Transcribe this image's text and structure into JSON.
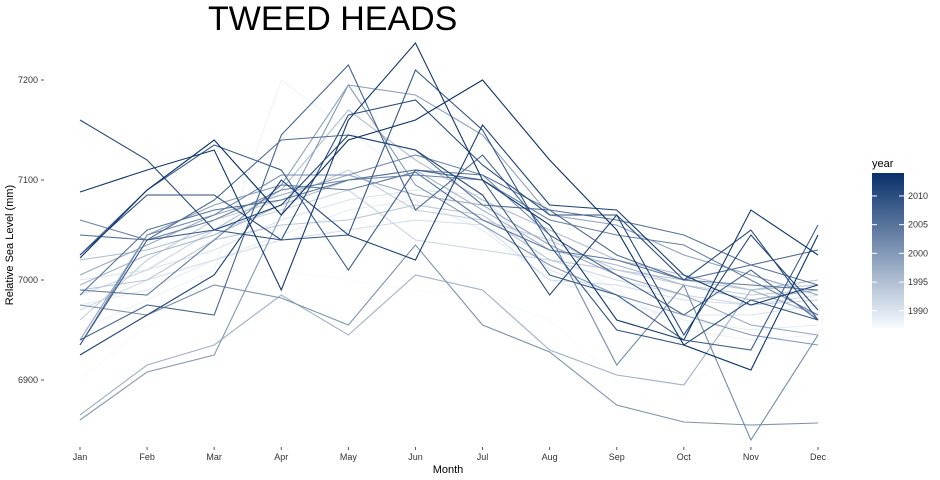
{
  "chart_data": {
    "type": "line",
    "title": "TWEED HEADS",
    "xlabel": "Month",
    "ylabel": "Relative Sea Level (mm)",
    "categories": [
      "Jan",
      "Feb",
      "Mar",
      "Apr",
      "May",
      "Jun",
      "Jul",
      "Aug",
      "Sep",
      "Oct",
      "Nov",
      "Dec"
    ],
    "ylim": [
      6840,
      7240
    ],
    "yticks": [
      6900,
      7000,
      7100,
      7200
    ],
    "ytick_labels": [
      "6900",
      "7000",
      "7100",
      "7200"
    ],
    "grid": false,
    "legend": {
      "title": "year",
      "position": "right",
      "type": "colorbar",
      "range": [
        1987,
        2014
      ],
      "breaks": [
        1990,
        1995,
        2000,
        2005,
        2010
      ],
      "labels": [
        "1990",
        "1995",
        "2000",
        "2005",
        "2010"
      ],
      "low_color": "#f7fbff",
      "high_color": "#08306b"
    },
    "series": [
      {
        "year": 1987,
        "values": [
          6900,
          6955,
          6985,
          7010,
          7000,
          6990,
          6985,
          6960,
          6900,
          6895,
          6935,
          6940
        ]
      },
      {
        "year": 1988,
        "values": [
          6950,
          6980,
          7010,
          7200,
          7150,
          7100,
          7060,
          7030,
          6990,
          6950,
          6940,
          6945
        ]
      },
      {
        "year": 1989,
        "values": [
          6975,
          6990,
          7020,
          7045,
          7070,
          7080,
          7050,
          7000,
          6980,
          6960,
          6950,
          6955
        ]
      },
      {
        "year": 1990,
        "values": [
          7000,
          7010,
          7030,
          7060,
          7080,
          7090,
          7085,
          7010,
          6985,
          6965,
          6965,
          6975
        ]
      },
      {
        "year": 1991,
        "values": [
          6970,
          7000,
          7020,
          7040,
          7050,
          7060,
          7055,
          7000,
          6995,
          6980,
          6975,
          6985
        ]
      },
      {
        "year": 1992,
        "values": [
          6985,
          7010,
          7050,
          7070,
          7090,
          7040,
          7030,
          7020,
          7000,
          6985,
          6975,
          6980
        ]
      },
      {
        "year": 1993,
        "values": [
          6960,
          7020,
          7060,
          7080,
          7110,
          7070,
          7060,
          7040,
          7010,
          6995,
          6985,
          6990
        ]
      },
      {
        "year": 1994,
        "values": [
          6990,
          7000,
          7040,
          7055,
          7060,
          7075,
          7065,
          7020,
          7010,
          7000,
          6990,
          6995
        ]
      },
      {
        "year": 1995,
        "values": [
          7020,
          7030,
          7050,
          7090,
          7170,
          7120,
          7080,
          7050,
          7020,
          7005,
          6990,
          7000
        ]
      },
      {
        "year": 1996,
        "values": [
          6995,
          7025,
          7045,
          7075,
          7100,
          7110,
          7070,
          7030,
          7015,
          6995,
          6980,
          6990
        ]
      },
      {
        "year": 1997,
        "values": [
          6865,
          6915,
          6935,
          6985,
          6945,
          7005,
          6990,
          6930,
          6905,
          6895,
          6990,
          6965
        ]
      },
      {
        "year": 1998,
        "values": [
          7005,
          7035,
          7065,
          7085,
          7105,
          7085,
          7075,
          7035,
          7005,
          6985,
          6955,
          6945
        ]
      },
      {
        "year": 1999,
        "values": [
          6940,
          7045,
          7075,
          7095,
          7195,
          7185,
          7145,
          7065,
          7055,
          7025,
          7005,
          6985
        ]
      },
      {
        "year": 2000,
        "values": [
          6860,
          6908,
          6925,
          7065,
          7195,
          7095,
          7055,
          7015,
          6985,
          6965,
          6945,
          6935
        ]
      },
      {
        "year": 2001,
        "values": [
          6975,
          6965,
          6995,
          6982,
          6955,
          7035,
          6955,
          6928,
          6875,
          6858,
          6855,
          6857
        ]
      },
      {
        "year": 2002,
        "values": [
          6935,
          7045,
          7065,
          7105,
          7105,
          7125,
          7105,
          7045,
          6915,
          6995,
          6840,
          6945
        ]
      },
      {
        "year": 2003,
        "values": [
          7060,
          7040,
          7060,
          7090,
          7100,
          7105,
          7100,
          7060,
          7045,
          7035,
          7000,
          6965
        ]
      },
      {
        "year": 2004,
        "values": [
          6990,
          6985,
          7040,
          7095,
          7090,
          7108,
          7060,
          7030,
          7020,
          7000,
          6995,
          6990
        ]
      },
      {
        "year": 2005,
        "values": [
          6985,
          7050,
          7070,
          7080,
          7100,
          7110,
          7105,
          7070,
          7060,
          7045,
          7015,
          6995
        ]
      },
      {
        "year": 2006,
        "values": [
          7045,
          7040,
          7080,
          7140,
          7145,
          7130,
          7075,
          7070,
          7025,
          7000,
          7015,
          7030
        ]
      },
      {
        "year": 2007,
        "values": [
          6940,
          6975,
          6965,
          7145,
          7215,
          7070,
          7125,
          7045,
          7005,
          6965,
          7010,
          6960
        ]
      },
      {
        "year": 2008,
        "values": [
          7025,
          7090,
          7135,
          7110,
          7010,
          7110,
          7100,
          7005,
          6985,
          6940,
          6930,
          7055
        ]
      },
      {
        "year": 2009,
        "values": [
          6935,
          7040,
          7050,
          7040,
          7045,
          7210,
          7150,
          7035,
          6950,
          6935,
          6980,
          6960
        ]
      },
      {
        "year": 2010,
        "values": [
          7025,
          7085,
          7085,
          7040,
          7165,
          7180,
          7115,
          7065,
          7065,
          7000,
          7050,
          6960
        ]
      },
      {
        "year": 2011,
        "values": [
          7160,
          7120,
          7050,
          7075,
          7145,
          7130,
          7085,
          6985,
          7065,
          6945,
          7045,
          6970
        ]
      },
      {
        "year": 2012,
        "values": [
          6925,
          6965,
          7005,
          7100,
          7045,
          7020,
          7155,
          7075,
          7070,
          7005,
          6975,
          6995
        ]
      },
      {
        "year": 2013,
        "values": [
          7088,
          7110,
          7130,
          6990,
          7160,
          7237,
          7100,
          7055,
          6960,
          6940,
          7070,
          7025
        ]
      },
      {
        "year": 2014,
        "values": [
          7022,
          7090,
          7140,
          7065,
          7140,
          7160,
          7200,
          7120,
          7050,
          6935,
          6910,
          7045
        ]
      }
    ]
  }
}
